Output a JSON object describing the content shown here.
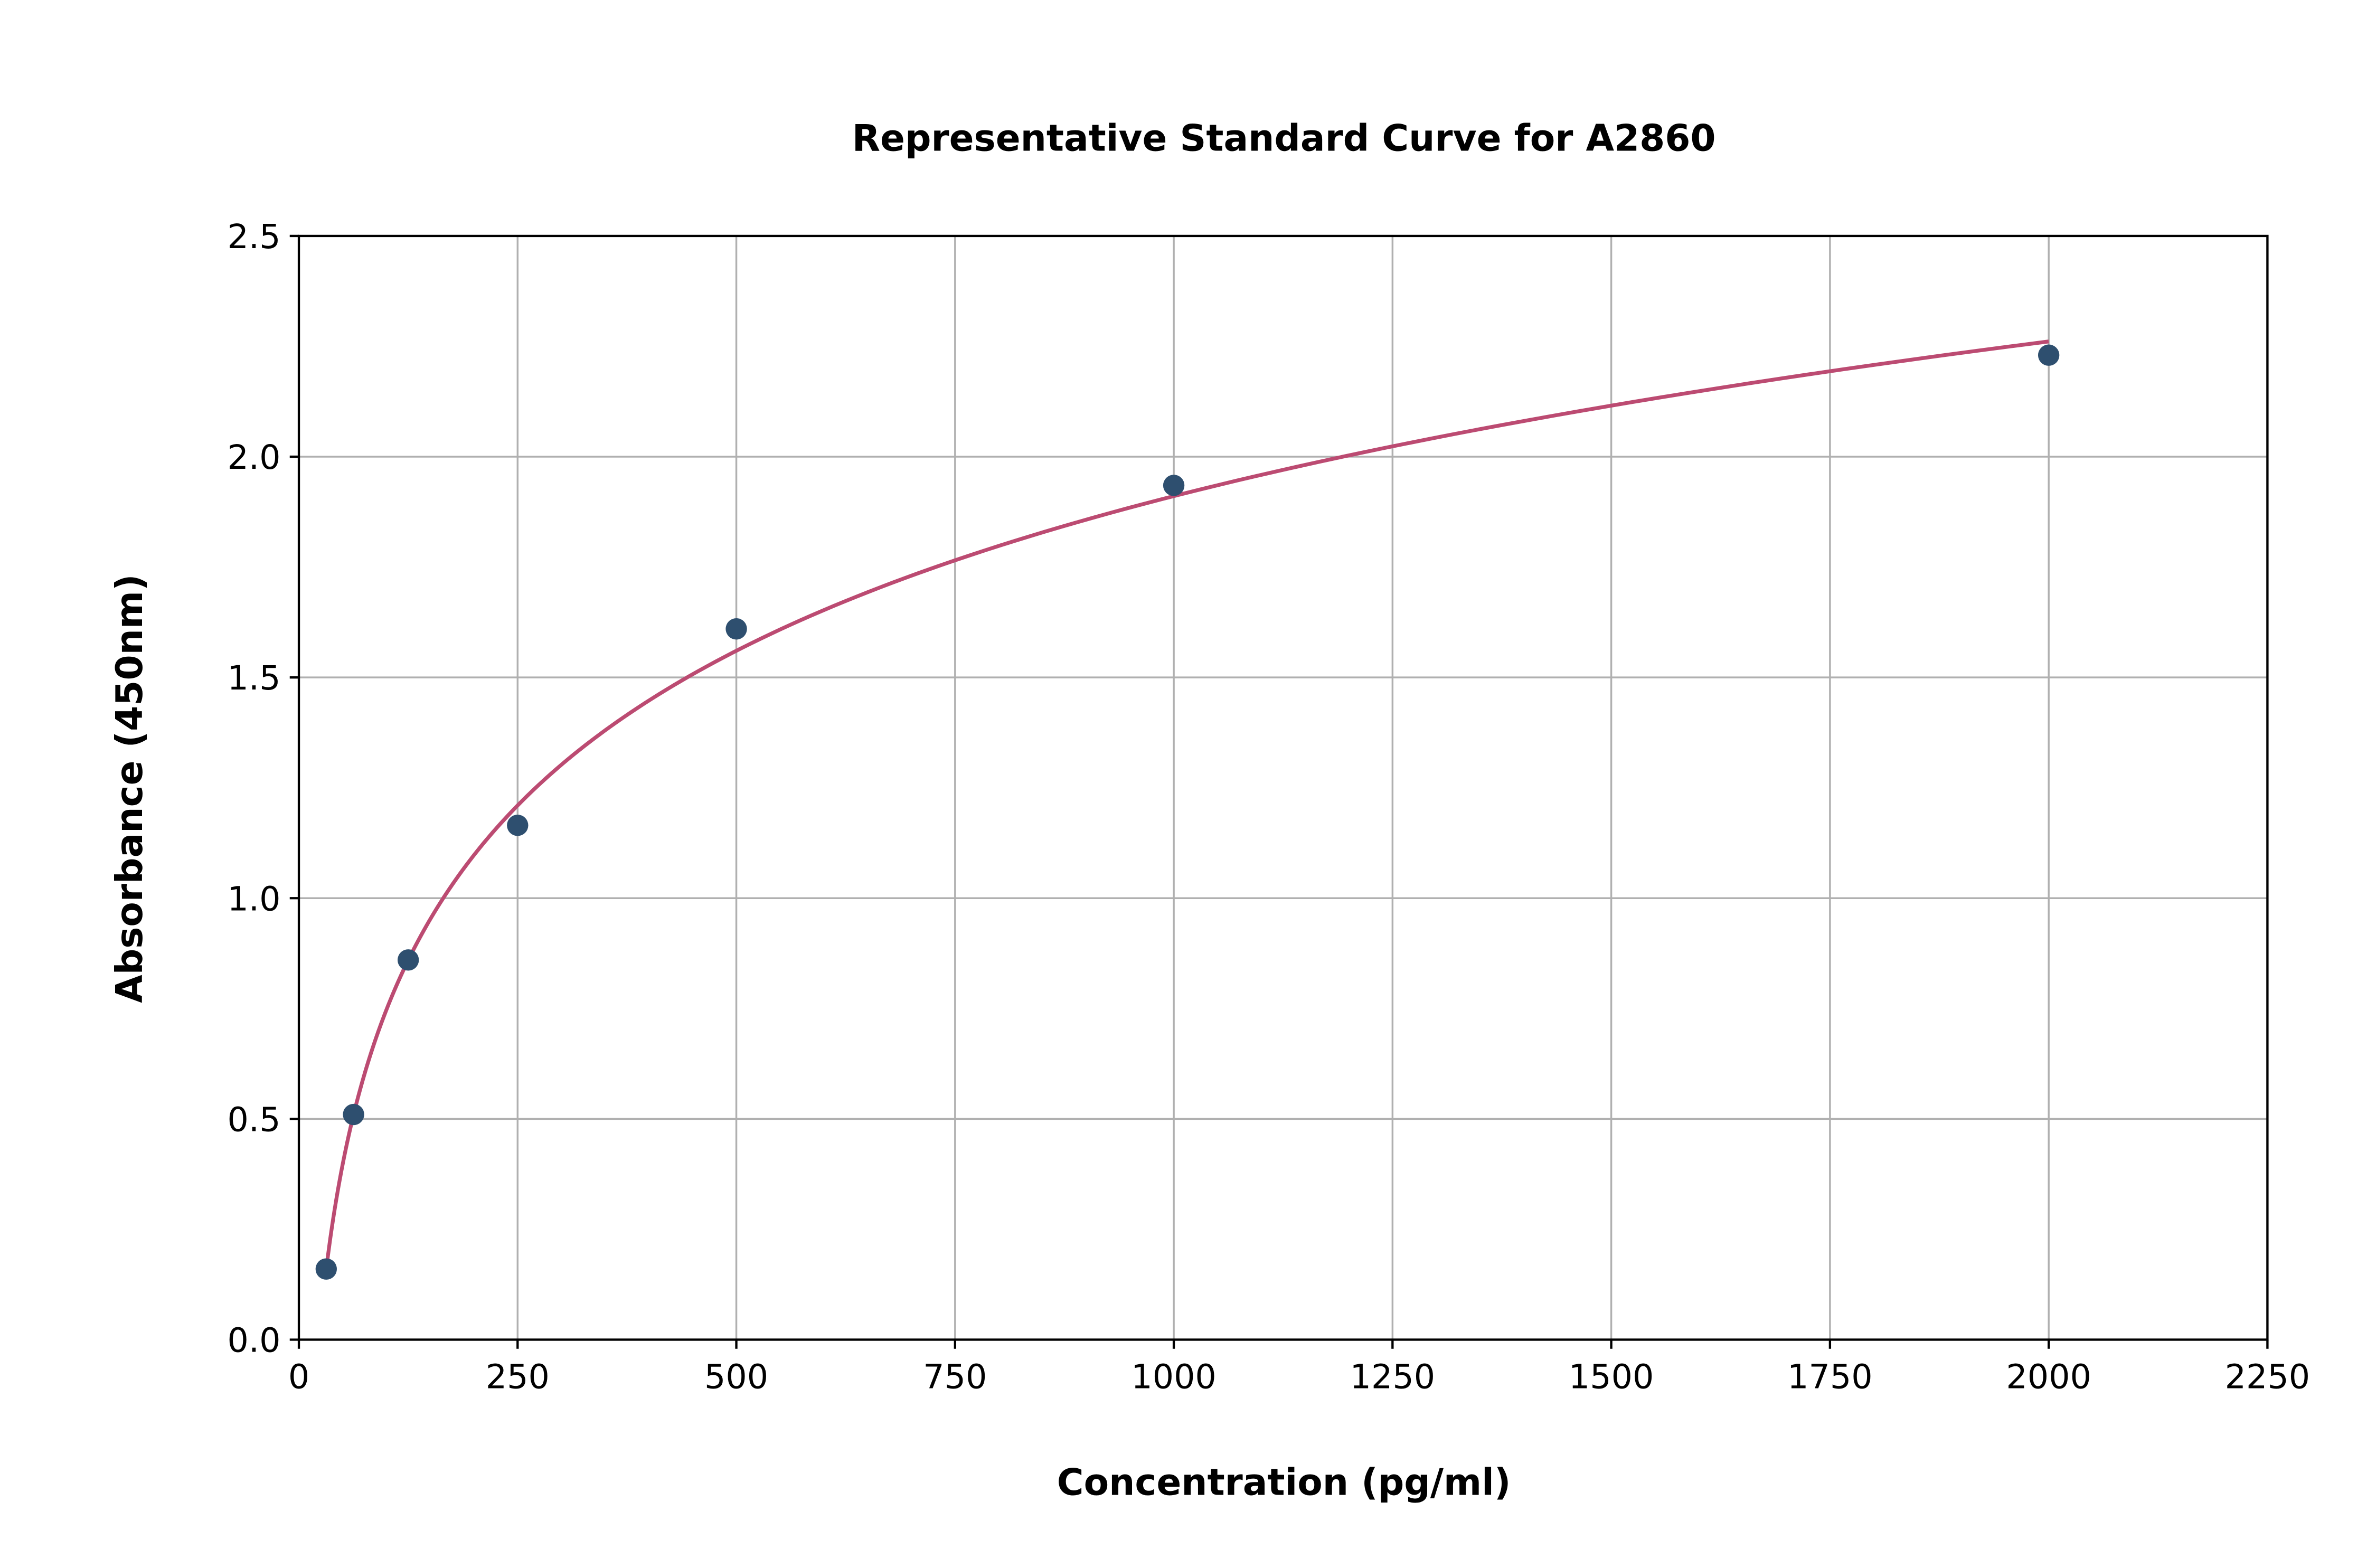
{
  "chart_data": {
    "type": "scatter",
    "title": "Representative Standard Curve for A2860",
    "xlabel": "Concentration (pg/ml)",
    "ylabel": "Absorbance (450nm)",
    "xlim": [
      0,
      2250
    ],
    "ylim": [
      0,
      2.5
    ],
    "xticks": [
      "0",
      "250",
      "500",
      "750",
      "1000",
      "1250",
      "1500",
      "1750",
      "2000",
      "2250"
    ],
    "yticks": [
      "0.0",
      "0.5",
      "1.0",
      "1.5",
      "2.0",
      "2.5"
    ],
    "grid": true,
    "points": [
      {
        "x": 31.25,
        "y": 0.16
      },
      {
        "x": 62.5,
        "y": 0.51
      },
      {
        "x": 125,
        "y": 0.86
      },
      {
        "x": 250,
        "y": 1.165
      },
      {
        "x": 500,
        "y": 1.61
      },
      {
        "x": 1000,
        "y": 1.935
      },
      {
        "x": 2000,
        "y": 2.23
      }
    ],
    "fit_curve": {
      "type": "fitted standard curve",
      "x_range": [
        31.25,
        2000
      ]
    },
    "colors": {
      "points": "#2e4f6f",
      "curve": "#bc4b72",
      "grid": "#b0b0b0"
    }
  }
}
